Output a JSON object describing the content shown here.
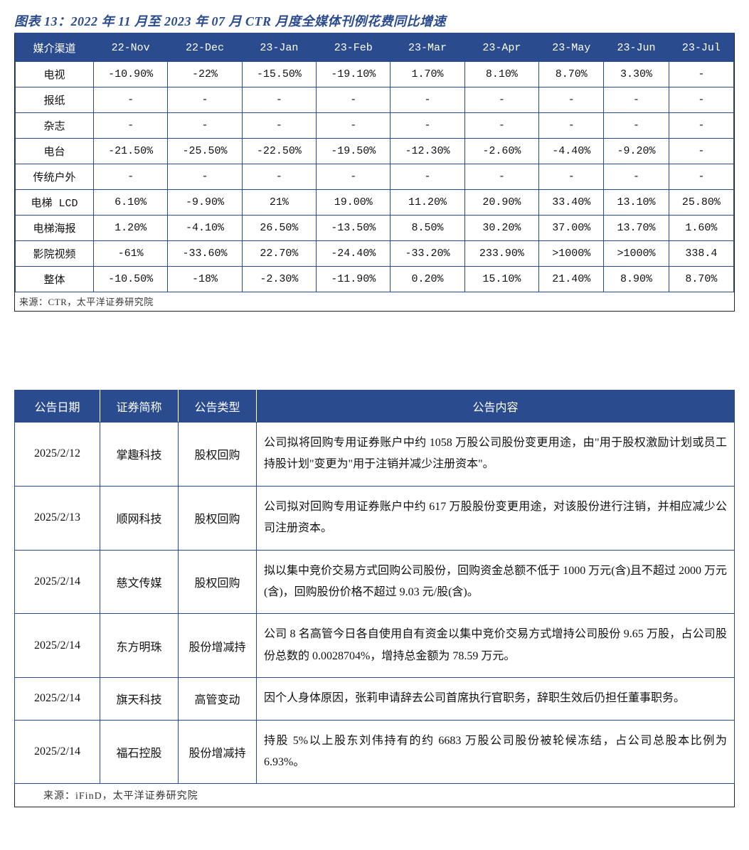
{
  "table1": {
    "title": "图表 13：2022 年 11 月至 2023 年 07 月 CTR 月度全媒体刊例花费同比增速",
    "header_bg": "#2a4b8d",
    "header_fg": "#ffffff",
    "border_color": "#2a4b8d",
    "columns": [
      "媒介渠道",
      "22-Nov",
      "22-Dec",
      "23-Jan",
      "23-Feb",
      "23-Mar",
      "23-Apr",
      "23-May",
      "23-Jun",
      "23-Jul"
    ],
    "rows": [
      [
        "电视",
        "-10.90%",
        "-22%",
        "-15.50%",
        "-19.10%",
        "1.70%",
        "8.10%",
        "8.70%",
        "3.30%",
        "-"
      ],
      [
        "报纸",
        "-",
        "-",
        "-",
        "-",
        "-",
        "-",
        "-",
        "-",
        "-"
      ],
      [
        "杂志",
        "-",
        "-",
        "-",
        "-",
        "-",
        "-",
        "-",
        "-",
        "-"
      ],
      [
        "电台",
        "-21.50%",
        "-25.50%",
        "-22.50%",
        "-19.50%",
        "-12.30%",
        "-2.60%",
        "-4.40%",
        "-9.20%",
        "-"
      ],
      [
        "传统户外",
        "-",
        "-",
        "-",
        "-",
        "-",
        "-",
        "-",
        "-",
        "-"
      ],
      [
        "电梯 LCD",
        "6.10%",
        "-9.90%",
        "21%",
        "19.00%",
        "11.20%",
        "20.90%",
        "33.40%",
        "13.10%",
        "25.80%"
      ],
      [
        "电梯海报",
        "1.20%",
        "-4.10%",
        "26.50%",
        "-13.50%",
        "8.50%",
        "30.20%",
        "37.00%",
        "13.70%",
        "1.60%"
      ],
      [
        "影院视频",
        "-61%",
        "-33.60%",
        "22.70%",
        "-24.40%",
        "-33.20%",
        "233.90%",
        ">1000%",
        ">1000%",
        "338.4"
      ],
      [
        "整体",
        "-10.50%",
        "-18%",
        "-2.30%",
        "-11.90%",
        "0.20%",
        "15.10%",
        "21.40%",
        "8.90%",
        "8.70%"
      ]
    ],
    "source": "来源：CTR，太平洋证券研究院"
  },
  "table2": {
    "header_bg": "#2a4b8d",
    "header_fg": "#ffffff",
    "border_color": "#2a4b8d",
    "columns": [
      "公告日期",
      "证券简称",
      "公告类型",
      "公告内容"
    ],
    "rows": [
      {
        "date": "2025/2/12",
        "name": "掌趣科技",
        "type": "股权回购",
        "content": "公司拟将回购专用证券账户中约 1058 万股公司股份变更用途，由\"用于股权激励计划或员工持股计划\"变更为\"用于注销并减少注册资本\"。"
      },
      {
        "date": "2025/2/13",
        "name": "顺网科技",
        "type": "股权回购",
        "content": "公司拟对回购专用证券账户中约 617 万股股份变更用途，对该股份进行注销，并相应减少公司注册资本。"
      },
      {
        "date": "2025/2/14",
        "name": "慈文传媒",
        "type": "股权回购",
        "content": "拟以集中竞价交易方式回购公司股份，回购资金总额不低于 1000 万元(含)且不超过 2000 万元(含)，回购股份价格不超过 9.03 元/股(含)。"
      },
      {
        "date": "2025/2/14",
        "name": "东方明珠",
        "type": "股份增减持",
        "content": "公司 8 名高管今日各自使用自有资金以集中竞价交易方式增持公司股份 9.65 万股，占公司股份总数的 0.0028704%，增持总金额为 78.59 万元。"
      },
      {
        "date": "2025/2/14",
        "name": "旗天科技",
        "type": "高管变动",
        "content": "因个人身体原因，张莉申请辞去公司首席执行官职务，辞职生效后仍担任董事职务。"
      },
      {
        "date": "2025/2/14",
        "name": "福石控股",
        "type": "股份增减持",
        "content": "持股 5%以上股东刘伟持有的约 6683 万股公司股份被轮候冻结，占公司总股本比例为 6.93%。"
      }
    ],
    "source": "来源：iFinD，太平洋证券研究院"
  }
}
